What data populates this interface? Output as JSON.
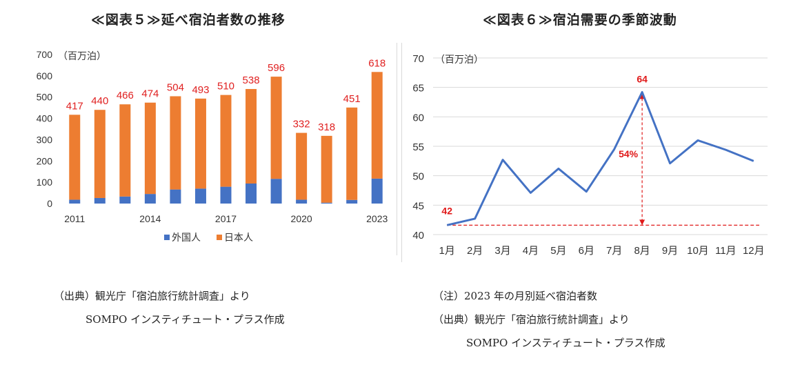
{
  "left_chart": {
    "title": "≪図表５≫延べ宿泊者数の推移",
    "unit": "（百万泊）",
    "source_line1": "（出典）観光庁「宿泊旅行統計調査」より",
    "source_line2": "SOMPO インスティチュート・プラス作成"
  },
  "right_chart": {
    "title": "≪図表６≫宿泊需要の季節波動",
    "unit": "（百万泊）",
    "note": "（注）2023 年の月別延べ宿泊者数",
    "source_line1": "（出典）観光庁「宿泊旅行統計調査」より",
    "source_line2": "SOMPO インスティチュート・プラス作成"
  },
  "colors": {
    "foreign": "#4472c4",
    "japanese": "#ed7d31",
    "label_red": "#e02020",
    "line": "#4472c4",
    "annot": "#e01818"
  },
  "chart_data": [
    {
      "type": "bar",
      "stacked": true,
      "categories": [
        "2011",
        "2012",
        "2013",
        "2014",
        "2015",
        "2016",
        "2017",
        "2018",
        "2019",
        "2020",
        "2021",
        "2022",
        "2023"
      ],
      "x_tick_labels": [
        "2011",
        "2014",
        "2017",
        "2020",
        "2023"
      ],
      "series": [
        {
          "name": "外国人",
          "values": [
            18,
            26,
            33,
            45,
            66,
            70,
            79,
            94,
            116,
            18,
            4,
            17,
            117
          ]
        },
        {
          "name": "日本人",
          "values": [
            399,
            414,
            433,
            429,
            438,
            423,
            431,
            444,
            480,
            314,
            314,
            434,
            501
          ]
        }
      ],
      "totals": [
        417,
        440,
        466,
        474,
        504,
        493,
        510,
        538,
        596,
        332,
        318,
        451,
        618
      ],
      "ylim": [
        0,
        700
      ],
      "yticks": [
        0,
        100,
        200,
        300,
        400,
        500,
        600,
        700
      ],
      "legend_position": "bottom",
      "grid": false
    },
    {
      "type": "line",
      "categories": [
        "1月",
        "2月",
        "3月",
        "4月",
        "5月",
        "6月",
        "7月",
        "8月",
        "9月",
        "10月",
        "11月",
        "12月"
      ],
      "values": [
        41.6,
        42.7,
        52.7,
        47.1,
        51.2,
        47.3,
        54.5,
        64.2,
        52.1,
        56.0,
        54.4,
        52.5
      ],
      "ylim": [
        40,
        70
      ],
      "yticks": [
        40,
        45,
        50,
        55,
        60,
        65,
        70
      ],
      "grid": true,
      "annotations": {
        "min_label": "42",
        "max_label": "64",
        "increase_label": "54%"
      }
    }
  ]
}
